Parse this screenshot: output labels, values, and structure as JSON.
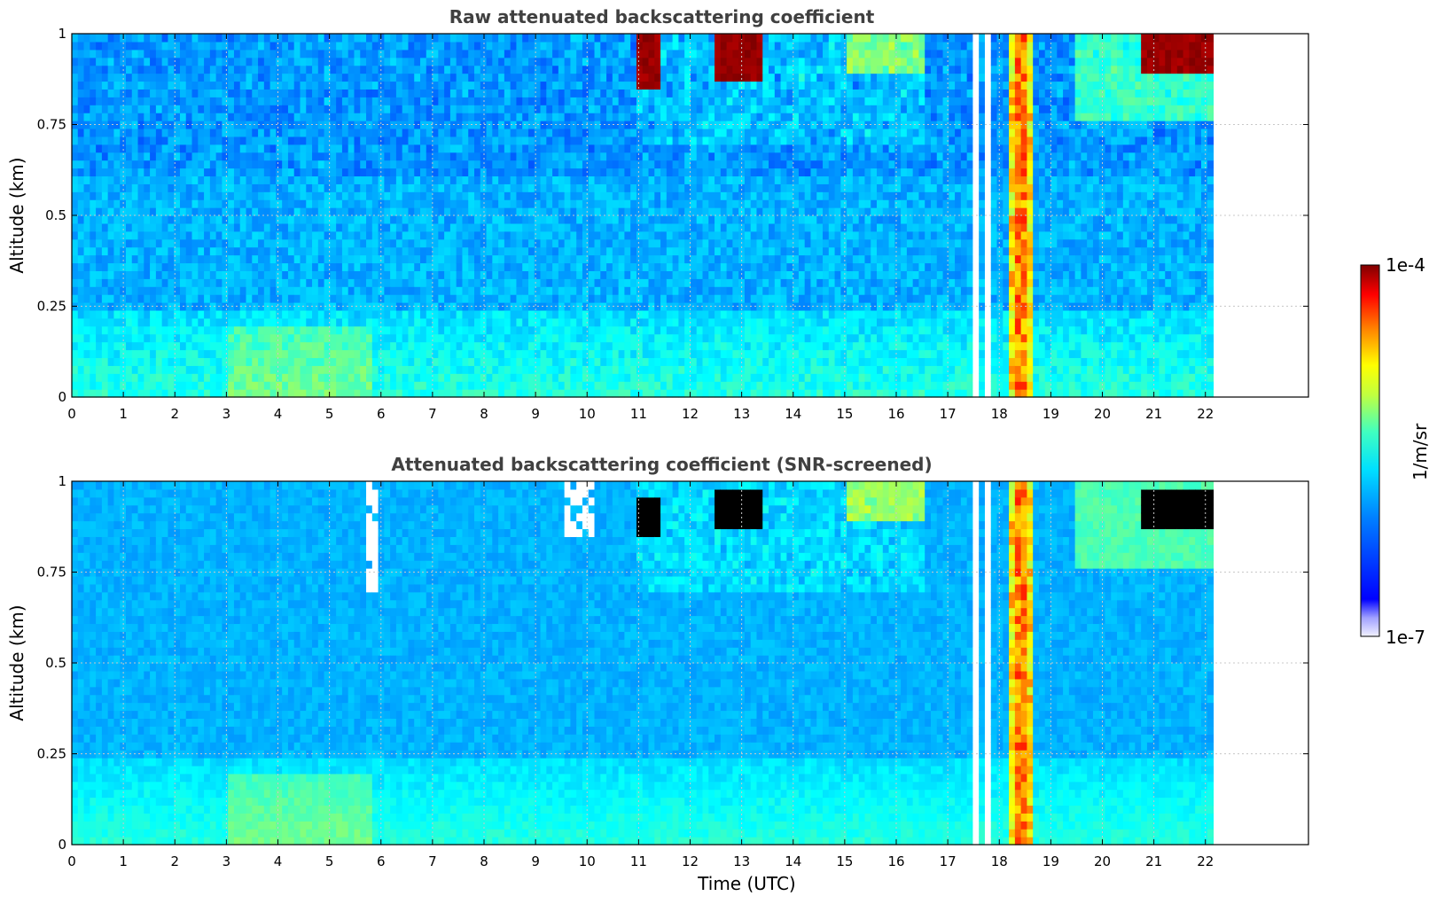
{
  "chart_data": [
    {
      "type": "heatmap",
      "title": "Raw attenuated backscattering coefficient",
      "xlabel": "",
      "ylabel": "Altitude (km)",
      "xlim": [
        0,
        24
      ],
      "ylim": [
        0,
        1
      ],
      "x_ticks": [
        "0",
        "1",
        "2",
        "3",
        "4",
        "5",
        "6",
        "7",
        "8",
        "9",
        "10",
        "11",
        "12",
        "13",
        "14",
        "15",
        "16",
        "17",
        "18",
        "19",
        "20",
        "21",
        "22"
      ],
      "y_ticks": [
        "0",
        "0.25",
        "0.5",
        "0.75",
        "1"
      ],
      "data_end_hour": 22.15,
      "grid": true,
      "features": [
        {
          "kind": "aerosol-layer",
          "from_h": 0,
          "to_h": 22.15,
          "alt_top_km": 0.25
        },
        {
          "kind": "cloud",
          "from_h": 11.0,
          "to_h": 11.4,
          "alt_km": [
            0.85,
            1.0
          ]
        },
        {
          "kind": "cloud",
          "from_h": 12.5,
          "to_h": 13.4,
          "alt_km": [
            0.88,
            1.0
          ]
        },
        {
          "kind": "cloud",
          "from_h": 20.7,
          "to_h": 22.1,
          "alt_km": [
            0.9,
            1.0
          ]
        },
        {
          "kind": "precipitation-column",
          "from_h": 18.2,
          "to_h": 18.6,
          "alt_km": [
            0,
            1
          ]
        }
      ]
    },
    {
      "type": "heatmap",
      "title": "Attenuated backscattering coefficient (SNR-screened)",
      "xlabel": "Time (UTC)",
      "ylabel": "Altitude (km)",
      "xlim": [
        0,
        24
      ],
      "ylim": [
        0,
        1
      ],
      "x_ticks": [
        "0",
        "1",
        "2",
        "3",
        "4",
        "5",
        "6",
        "7",
        "8",
        "9",
        "10",
        "11",
        "12",
        "13",
        "14",
        "15",
        "16",
        "17",
        "18",
        "19",
        "20",
        "21",
        "22"
      ],
      "y_ticks": [
        "0",
        "0.25",
        "0.5",
        "0.75",
        "1"
      ],
      "data_end_hour": 22.15,
      "grid": true,
      "features": [
        {
          "kind": "aerosol-layer",
          "from_h": 0,
          "to_h": 22.15,
          "alt_top_km": 0.25
        },
        {
          "kind": "screened-out",
          "from_h": 5.7,
          "to_h": 5.95,
          "alt_km": [
            0.7,
            1.0
          ]
        },
        {
          "kind": "screened-out",
          "from_h": 9.6,
          "to_h": 10.1,
          "alt_km": [
            0.85,
            1.0
          ]
        },
        {
          "kind": "saturated-cloud",
          "from_h": 11.0,
          "to_h": 11.4,
          "alt_km": [
            0.85,
            0.95
          ]
        },
        {
          "kind": "saturated-cloud",
          "from_h": 12.5,
          "to_h": 13.4,
          "alt_km": [
            0.88,
            0.97
          ]
        },
        {
          "kind": "saturated-cloud",
          "from_h": 20.7,
          "to_h": 22.1,
          "alt_km": [
            0.88,
            0.97
          ]
        }
      ]
    }
  ],
  "colorbar": {
    "label": "1/m/sr",
    "max_label": "1e-4",
    "min_label": "1e-7",
    "colormap": "jet"
  }
}
